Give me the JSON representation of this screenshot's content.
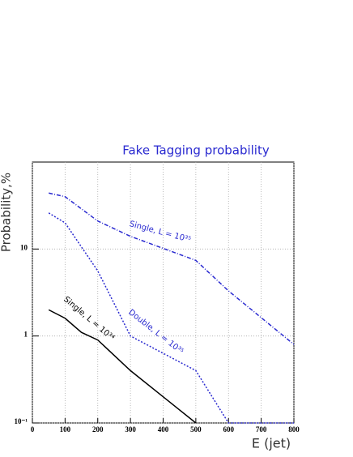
{
  "chart_data": {
    "type": "line",
    "title": "Fake Tagging probability",
    "x_label": "E (jet)",
    "y_label": "Probability,%",
    "xlim": [
      0,
      800
    ],
    "xticks": [
      0,
      100,
      200,
      300,
      400,
      500,
      600,
      700,
      800
    ],
    "ylim": [
      0.1,
      100
    ],
    "yticks": [
      {
        "value": 0.1,
        "label": "10⁻¹"
      },
      1,
      10
    ],
    "log_y": true,
    "grid": true,
    "series": [
      {
        "name": "Single, L = 10³⁵",
        "color": "#2a2ad0",
        "style": "dashdot",
        "x": [
          50,
          100,
          200,
          300,
          500,
          600,
          800
        ],
        "values": [
          44,
          40,
          21,
          14,
          7.4,
          3.3,
          0.8
        ]
      },
      {
        "name": "Double, L = 10³⁵",
        "color": "#2a2ad0",
        "style": "dotted",
        "x": [
          50,
          100,
          200,
          300,
          500,
          600,
          800
        ],
        "values": [
          26,
          20,
          5.6,
          1.0,
          0.4,
          0.1,
          0.1
        ]
      },
      {
        "name": "Single, L = 10³⁴",
        "color": "#000000",
        "style": "solid",
        "x": [
          50,
          100,
          150,
          200,
          300,
          400,
          500
        ],
        "values": [
          2.0,
          1.6,
          1.1,
          0.9,
          0.4,
          0.2,
          0.1
        ]
      }
    ]
  }
}
